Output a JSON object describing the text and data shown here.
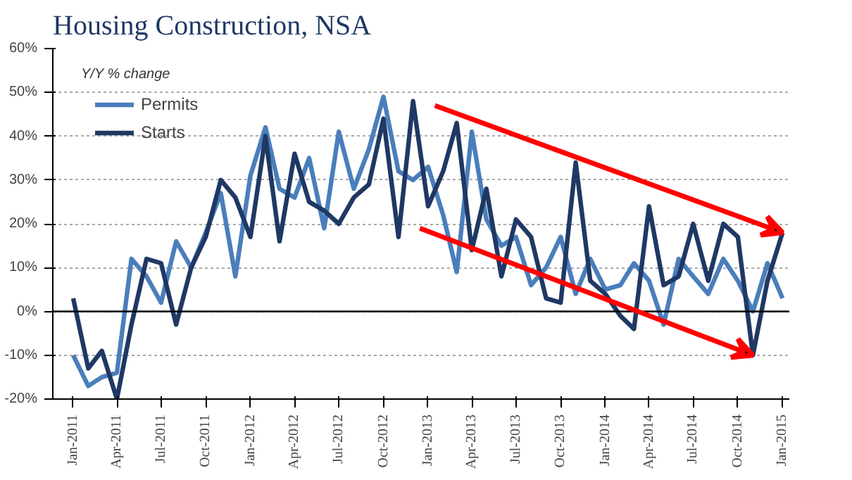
{
  "chart_data": {
    "type": "line",
    "title": "Housing Construction, NSA",
    "annotations": [
      "Y/Y % change"
    ],
    "x": [
      "2011-01",
      "2011-02",
      "2011-03",
      "2011-04",
      "2011-05",
      "2011-06",
      "2011-07",
      "2011-08",
      "2011-09",
      "2011-10",
      "2011-11",
      "2011-12",
      "2012-01",
      "2012-02",
      "2012-03",
      "2012-04",
      "2012-05",
      "2012-06",
      "2012-07",
      "2012-08",
      "2012-09",
      "2012-10",
      "2012-11",
      "2012-12",
      "2013-01",
      "2013-02",
      "2013-03",
      "2013-04",
      "2013-05",
      "2013-06",
      "2013-07",
      "2013-08",
      "2013-09",
      "2013-10",
      "2013-11",
      "2013-12",
      "2014-01",
      "2014-02",
      "2014-03",
      "2014-04",
      "2014-05",
      "2014-06",
      "2014-07",
      "2014-08",
      "2014-09",
      "2014-10",
      "2014-11",
      "2014-12",
      "2015-01"
    ],
    "series": [
      {
        "name": "Permits",
        "color": "#4a7ebb",
        "values": [
          -10,
          -17,
          -15,
          -14,
          12,
          8,
          2,
          16,
          10,
          18,
          27,
          8,
          31,
          42,
          28,
          26,
          35,
          19,
          41,
          28,
          37,
          49,
          32,
          30,
          33,
          22,
          9,
          41,
          21,
          15,
          17,
          6,
          10,
          17,
          4,
          12,
          5,
          6,
          11,
          7,
          -3,
          12,
          8,
          4,
          12,
          7,
          0,
          11,
          3
        ]
      },
      {
        "name": "Starts",
        "color": "#1f3864",
        "values": [
          3,
          -13,
          -9,
          -20,
          -3,
          12,
          11,
          -3,
          10,
          17,
          30,
          26,
          17,
          40,
          16,
          36,
          25,
          23,
          20,
          26,
          29,
          44,
          17,
          48,
          24,
          32,
          43,
          14,
          28,
          8,
          21,
          17,
          3,
          2,
          34,
          7,
          4,
          -1,
          -4,
          24,
          6,
          8,
          20,
          7,
          20,
          17,
          -10,
          7,
          18
        ]
      }
    ],
    "xlim": [
      "2010-11-20",
      "2015-01-15"
    ],
    "xticks": [
      {
        "value": "2011-01",
        "label": "Jan-2011"
      },
      {
        "value": "2011-04",
        "label": "Apr-2011"
      },
      {
        "value": "2011-07",
        "label": "Jul-2011"
      },
      {
        "value": "2011-10",
        "label": "Oct-2011"
      },
      {
        "value": "2012-01",
        "label": "Jan-2012"
      },
      {
        "value": "2012-04",
        "label": "Apr-2012"
      },
      {
        "value": "2012-07",
        "label": "Jul-2012"
      },
      {
        "value": "2012-10",
        "label": "Oct-2012"
      },
      {
        "value": "2013-01",
        "label": "Jan-2013"
      },
      {
        "value": "2013-04",
        "label": "Apr-2013"
      },
      {
        "value": "2013-07",
        "label": "Jul-2013"
      },
      {
        "value": "2013-10",
        "label": "Oct-2013"
      },
      {
        "value": "2014-01",
        "label": "Jan-2014"
      },
      {
        "value": "2014-04",
        "label": "Apr-2014"
      },
      {
        "value": "2014-07",
        "label": "Jul-2014"
      },
      {
        "value": "2014-10",
        "label": "Oct-2014"
      },
      {
        "value": "2015-01",
        "label": "Jan-2015"
      }
    ],
    "ylim": [
      -20,
      60
    ],
    "yticks": [
      {
        "value": -20,
        "label": "-20%"
      },
      {
        "value": -10,
        "label": "-10%"
      },
      {
        "value": 0,
        "label": "0%"
      },
      {
        "value": 10,
        "label": "10%"
      },
      {
        "value": 20,
        "label": "20%"
      },
      {
        "value": 30,
        "label": "30%"
      },
      {
        "value": 40,
        "label": "40%"
      },
      {
        "value": 50,
        "label": "50%"
      },
      {
        "value": 60,
        "label": "60%"
      }
    ],
    "ref_lines": [
      {
        "axis": "y",
        "value": 0,
        "color": "#000000"
      }
    ],
    "grid": "y",
    "legend": "top left",
    "marker": "none",
    "line_style": "solid"
  }
}
